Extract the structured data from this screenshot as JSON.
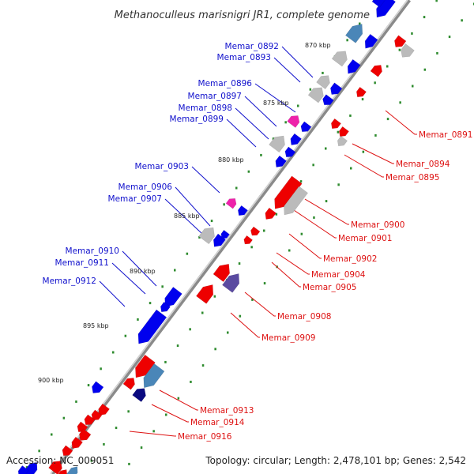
{
  "title": "Methanoculleus marisnigri JR1, complete genome",
  "footer": {
    "accession": "Accession: NC_009051",
    "topology": "Topology: circular; Length: 2,478,101 bp; Genes: 2,542"
  },
  "colors": {
    "backbone": "#8a8a8a",
    "tick_dots": "#2e8b2e",
    "forward_label": "#1010cc",
    "reverse_label": "#dd1111",
    "gene_blue": "#0000ee",
    "gene_red": "#ee0000",
    "gene_gray": "#bbbbbb",
    "gene_magenta": "#ee22aa",
    "gene_steel": "#4a86b8",
    "gene_purple": "#5a4aa0",
    "gene_navy": "#0a0a80"
  },
  "scale_labels": [
    "870 kbp",
    "875 kbp",
    "880 kbp",
    "885 kbp",
    "890 kbp",
    "895 kbp",
    "900 kbp"
  ],
  "forward_genes": [
    "Memar_0892",
    "Memar_0893",
    "Memar_0896",
    "Memar_0897",
    "Memar_0898",
    "Memar_0899",
    "Memar_0903",
    "Memar_0906",
    "Memar_0907",
    "Memar_0910",
    "Memar_0911",
    "Memar_0912"
  ],
  "reverse_genes": [
    "Memar_0891",
    "Memar_0894",
    "Memar_0895",
    "Memar_0900",
    "Memar_0901",
    "Memar_0902",
    "Memar_0904",
    "Memar_0905",
    "Memar_0908",
    "Memar_0909",
    "Memar_0913",
    "Memar_0914",
    "Memar_0916"
  ]
}
